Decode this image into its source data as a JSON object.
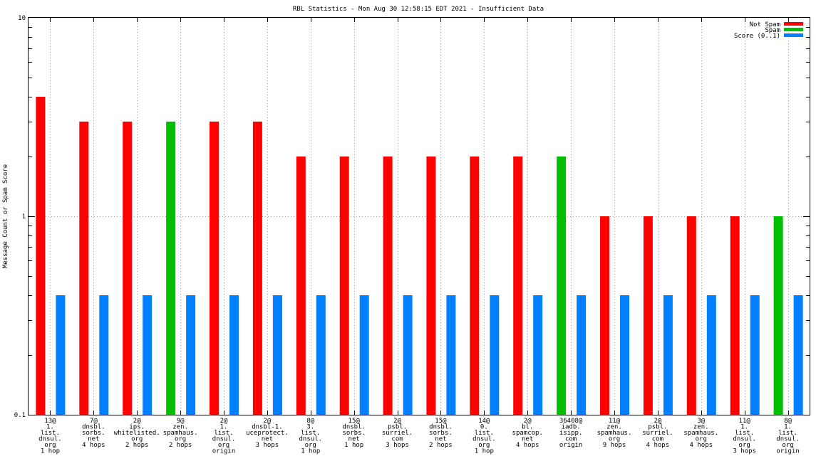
{
  "chart_data": {
    "type": "bar",
    "title": "RBL Statistics - Mon Aug 30 12:58:15 EDT 2021 - Insufficient Data",
    "xlabel": "",
    "ylabel": "Message Count or Spam Score",
    "yscale": "log",
    "ylim": [
      0.1,
      10
    ],
    "yticks": [
      {
        "value": 0.1,
        "label": "0.1"
      },
      {
        "value": 1,
        "label": "1"
      },
      {
        "value": 10,
        "label": "10"
      }
    ],
    "grid": "dotted",
    "legend_position": "top-right",
    "categories": [
      [
        "13@",
        "1.",
        "list.",
        "dnsul.",
        "org",
        "1 hop"
      ],
      [
        "7@",
        "dnsbl.",
        "sorbs.",
        "net",
        "4 hops"
      ],
      [
        "2@",
        "ips.",
        "whitelisted.",
        "org",
        "2 hops"
      ],
      [
        "9@",
        "zen.",
        "spamhaus.",
        "org",
        "2 hops"
      ],
      [
        "2@",
        "1.",
        "list.",
        "dnsul.",
        "org",
        "origin"
      ],
      [
        "2@",
        "dnsbl-1.",
        "uceprotect.",
        "net",
        "3 hops"
      ],
      [
        "8@",
        "3.",
        "list.",
        "dnsul.",
        "org",
        "1 hop"
      ],
      [
        "15@",
        "dnsbl.",
        "sorbs.",
        "net",
        "1 hop"
      ],
      [
        "2@",
        "psbl.",
        "surriel.",
        "com",
        "3 hops"
      ],
      [
        "15@",
        "dnsbl.",
        "sorbs.",
        "net",
        "2 hops"
      ],
      [
        "14@",
        "0.",
        "list.",
        "dnsul.",
        "org",
        "1 hop"
      ],
      [
        "2@",
        "bl.",
        "spamcop.",
        "net",
        "4 hops"
      ],
      [
        "36408@",
        "iadb.",
        "isipp.",
        "com",
        "origin"
      ],
      [
        "11@",
        "zen.",
        "spamhaus.",
        "org",
        "9 hops"
      ],
      [
        "2@",
        "psbl.",
        "surriel.",
        "com",
        "4 hops"
      ],
      [
        "3@",
        "zen.",
        "spamhaus.",
        "org",
        "4 hops"
      ],
      [
        "11@",
        "1.",
        "list.",
        "dnsul.",
        "org",
        "3 hops"
      ],
      [
        "8@",
        "1.",
        "list.",
        "dnsul.",
        "org",
        "origin"
      ]
    ],
    "series": [
      {
        "name": "Not Spam",
        "color": "#ff0000",
        "values": [
          4,
          3,
          3,
          null,
          3,
          3,
          2,
          2,
          2,
          2,
          2,
          2,
          null,
          1,
          1,
          1,
          1,
          null
        ]
      },
      {
        "name": "Spam",
        "color": "#00c000",
        "values": [
          null,
          null,
          null,
          3,
          null,
          null,
          null,
          null,
          null,
          null,
          null,
          null,
          2,
          null,
          null,
          null,
          null,
          1
        ]
      },
      {
        "name": "Score (0..1)",
        "color": "#0080ff",
        "values": [
          0.4,
          0.4,
          0.4,
          0.4,
          0.4,
          0.4,
          0.4,
          0.4,
          0.4,
          0.4,
          0.4,
          0.4,
          0.4,
          0.4,
          0.4,
          0.4,
          0.4,
          0.4
        ]
      }
    ]
  }
}
